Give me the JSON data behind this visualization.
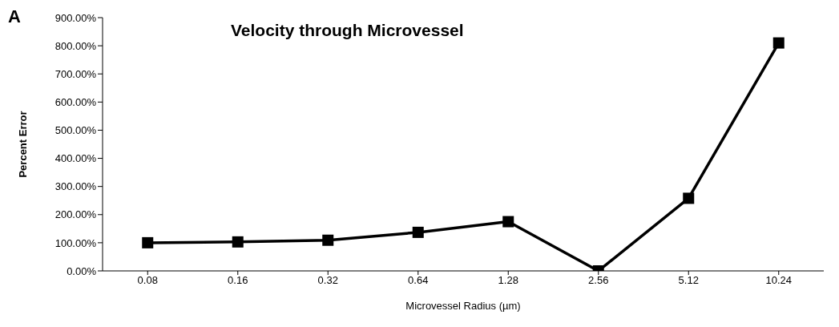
{
  "chart_data": {
    "type": "line",
    "title": "Velocity through Microvessel",
    "xlabel": "Microvessel Radius (µm)",
    "ylabel": "Percent Error",
    "annotations": [
      "A"
    ],
    "categories": [
      "0.08",
      "0.16",
      "0.32",
      "0.64",
      "1.28",
      "2.56",
      "5.12",
      "10.24"
    ],
    "series": [
      {
        "color": "#000000",
        "values": [
          100,
          103,
          109,
          137,
          175,
          0,
          258,
          810
        ]
      }
    ],
    "ylim": [
      0,
      900
    ],
    "yticks": [
      {
        "value": 0,
        "label": "0.00%"
      },
      {
        "value": 100,
        "label": "100.00%"
      },
      {
        "value": 200,
        "label": "200.00%"
      },
      {
        "value": 300,
        "label": "300.00%"
      },
      {
        "value": 400,
        "label": "400.00%"
      },
      {
        "value": 500,
        "label": "500.00%"
      },
      {
        "value": 600,
        "label": "600.00%"
      },
      {
        "value": 700,
        "label": "700.00%"
      },
      {
        "value": 800,
        "label": "800.00%"
      },
      {
        "value": 900,
        "label": "900.00%"
      }
    ],
    "marker": "square",
    "line_style": "solid",
    "grid": false,
    "legend": false
  }
}
